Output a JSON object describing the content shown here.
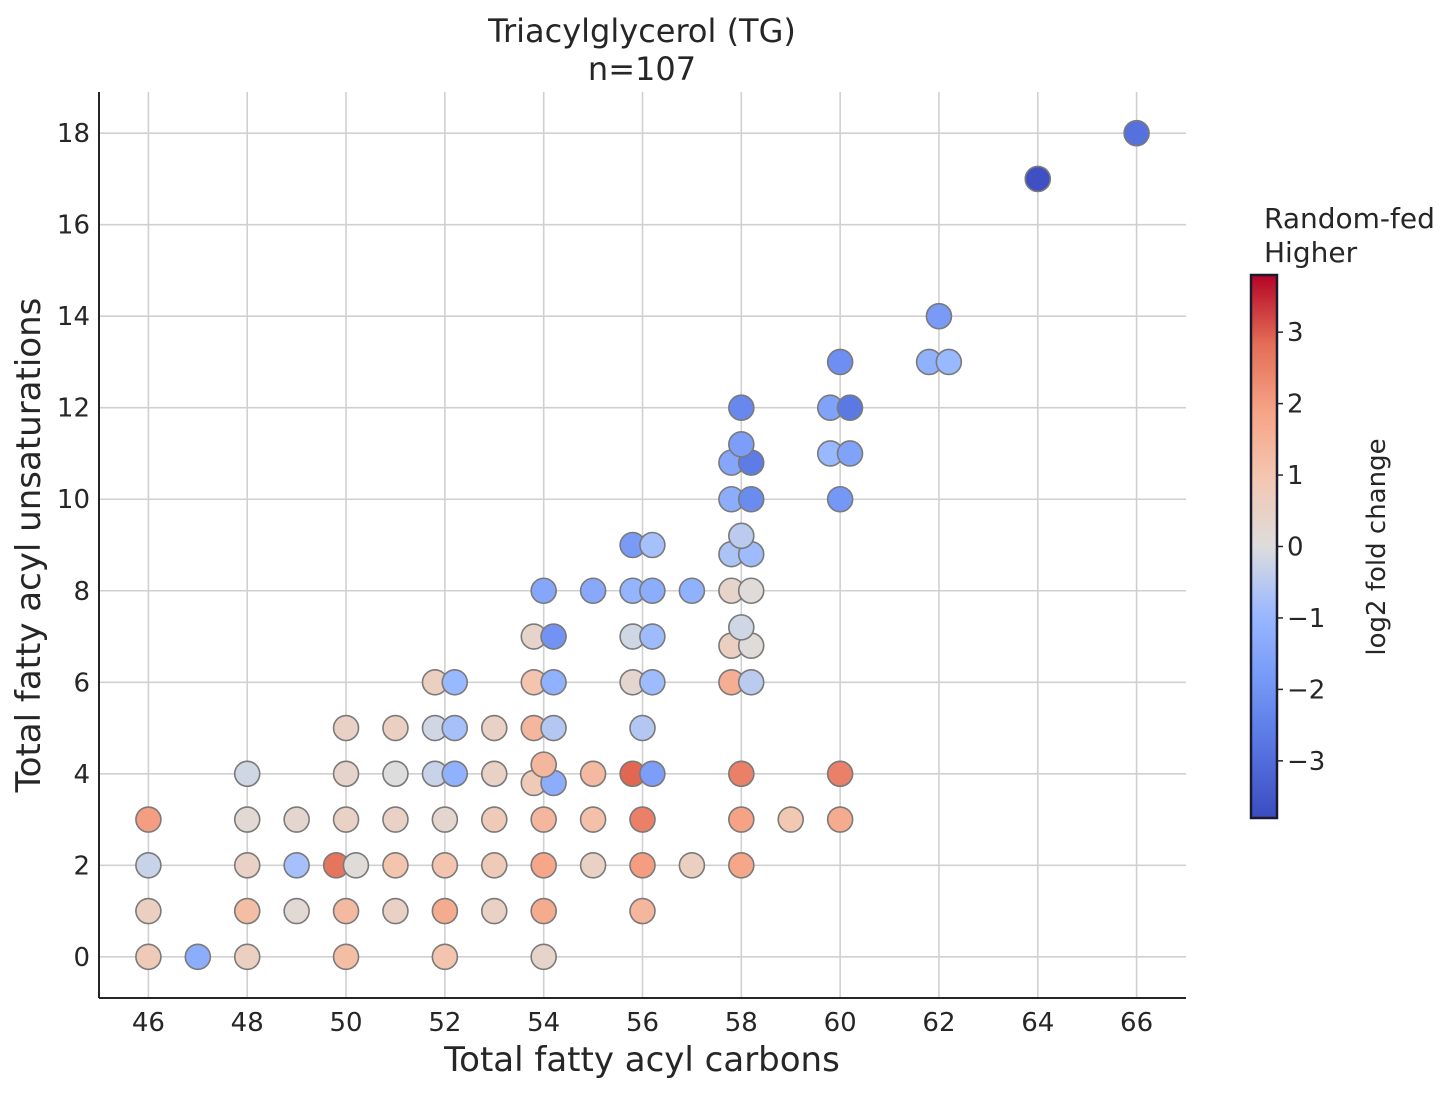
{
  "chart_data": {
    "type": "scatter",
    "title": "Triacylglycerol (TG)",
    "subtitle": "n=107",
    "xlabel": "Total fatty acyl carbons",
    "ylabel": "Total fatty acyl unsaturations",
    "xlim": [
      45,
      67
    ],
    "ylim": [
      -0.9,
      18.9
    ],
    "xticks": [
      46,
      48,
      50,
      52,
      54,
      56,
      58,
      60,
      62,
      64,
      66
    ],
    "yticks": [
      0,
      2,
      4,
      6,
      8,
      10,
      12,
      14,
      16,
      18
    ],
    "grid": true,
    "colorbar": {
      "label": "log2 fold change",
      "title_lines": [
        "Random-fed",
        "Higher"
      ],
      "range": [
        -3.8,
        3.8
      ],
      "ticks": [
        -3,
        -2,
        -1,
        0,
        1,
        2,
        3
      ],
      "tick_labels": [
        "−3",
        "−2",
        "−1",
        "0",
        "1",
        "2",
        "3"
      ],
      "colormap": "coolwarm",
      "low_color": "#3b4cc0",
      "mid_color": "#dddddd",
      "high_color": "#b40426"
    },
    "marker_edge_color": "#7a7a7a",
    "points": [
      {
        "x": 46,
        "y": 0,
        "v": 0.8
      },
      {
        "x": 46,
        "y": 1,
        "v": 0.6
      },
      {
        "x": 46,
        "y": 2,
        "v": -0.3
      },
      {
        "x": 46,
        "y": 3,
        "v": 2.0
      },
      {
        "x": 47,
        "y": 0,
        "v": -1.3
      },
      {
        "x": 48,
        "y": 0,
        "v": 0.6
      },
      {
        "x": 48,
        "y": 1,
        "v": 1.2
      },
      {
        "x": 48,
        "y": 2,
        "v": 0.5
      },
      {
        "x": 48,
        "y": 3,
        "v": 0.2
      },
      {
        "x": 48,
        "y": 4,
        "v": -0.2
      },
      {
        "x": 49,
        "y": 1,
        "v": 0.2
      },
      {
        "x": 49,
        "y": 2,
        "v": -0.8
      },
      {
        "x": 49,
        "y": 3,
        "v": 0.3
      },
      {
        "x": 49.8,
        "y": 2,
        "v": 2.7
      },
      {
        "x": 50.2,
        "y": 2,
        "v": 0.1
      },
      {
        "x": 50,
        "y": 0,
        "v": 1.2
      },
      {
        "x": 50,
        "y": 1,
        "v": 1.3
      },
      {
        "x": 50,
        "y": 3,
        "v": 0.5
      },
      {
        "x": 50,
        "y": 4,
        "v": 0.4
      },
      {
        "x": 50,
        "y": 5,
        "v": 0.5
      },
      {
        "x": 51,
        "y": 1,
        "v": 0.5
      },
      {
        "x": 51,
        "y": 2,
        "v": 1.0
      },
      {
        "x": 51,
        "y": 3,
        "v": 0.5
      },
      {
        "x": 51,
        "y": 4,
        "v": 0.0
      },
      {
        "x": 51,
        "y": 5,
        "v": 0.6
      },
      {
        "x": 52,
        "y": 0,
        "v": 1.0
      },
      {
        "x": 52,
        "y": 1,
        "v": 1.7
      },
      {
        "x": 52,
        "y": 2,
        "v": 1.0
      },
      {
        "x": 52,
        "y": 3,
        "v": 0.3
      },
      {
        "x": 51.8,
        "y": 4,
        "v": -0.3
      },
      {
        "x": 52.2,
        "y": 4,
        "v": -1.2
      },
      {
        "x": 51.8,
        "y": 5,
        "v": -0.2
      },
      {
        "x": 52.2,
        "y": 5,
        "v": -0.8
      },
      {
        "x": 51.8,
        "y": 6,
        "v": 0.6
      },
      {
        "x": 52.2,
        "y": 6,
        "v": -1.0
      },
      {
        "x": 53,
        "y": 1,
        "v": 0.5
      },
      {
        "x": 53,
        "y": 2,
        "v": 0.8
      },
      {
        "x": 53,
        "y": 3,
        "v": 0.8
      },
      {
        "x": 53,
        "y": 4,
        "v": 0.5
      },
      {
        "x": 53,
        "y": 5,
        "v": 0.5
      },
      {
        "x": 54,
        "y": 0,
        "v": 0.4
      },
      {
        "x": 54,
        "y": 1,
        "v": 1.7
      },
      {
        "x": 54,
        "y": 2,
        "v": 1.8
      },
      {
        "x": 54,
        "y": 3,
        "v": 1.4
      },
      {
        "x": 53.8,
        "y": 3.8,
        "v": 0.8
      },
      {
        "x": 54.2,
        "y": 3.8,
        "v": -1.3
      },
      {
        "x": 54,
        "y": 4.2,
        "v": 1.4
      },
      {
        "x": 53.8,
        "y": 5,
        "v": 1.4
      },
      {
        "x": 54.2,
        "y": 5,
        "v": -0.6
      },
      {
        "x": 53.8,
        "y": 6,
        "v": 1.0
      },
      {
        "x": 54.2,
        "y": 6,
        "v": -1.2
      },
      {
        "x": 53.8,
        "y": 7,
        "v": 0.4
      },
      {
        "x": 54.2,
        "y": 7,
        "v": -2.0
      },
      {
        "x": 54,
        "y": 8,
        "v": -1.5
      },
      {
        "x": 55,
        "y": 2,
        "v": 0.5
      },
      {
        "x": 55,
        "y": 3,
        "v": 1.1
      },
      {
        "x": 55,
        "y": 4,
        "v": 1.3
      },
      {
        "x": 55,
        "y": 8,
        "v": -1.4
      },
      {
        "x": 56,
        "y": 1,
        "v": 1.4
      },
      {
        "x": 56,
        "y": 2,
        "v": 2.0
      },
      {
        "x": 56,
        "y": 3,
        "v": 2.5
      },
      {
        "x": 55.8,
        "y": 4,
        "v": 2.9
      },
      {
        "x": 56.2,
        "y": 4,
        "v": -1.7
      },
      {
        "x": 56,
        "y": 5,
        "v": -0.6
      },
      {
        "x": 55.8,
        "y": 6,
        "v": 0.3
      },
      {
        "x": 56.2,
        "y": 6,
        "v": -0.9
      },
      {
        "x": 55.8,
        "y": 7,
        "v": -0.2
      },
      {
        "x": 56.2,
        "y": 7,
        "v": -0.9
      },
      {
        "x": 55.8,
        "y": 8,
        "v": -1.1
      },
      {
        "x": 56.2,
        "y": 8,
        "v": -1.3
      },
      {
        "x": 55.8,
        "y": 9,
        "v": -1.8
      },
      {
        "x": 56.2,
        "y": 9,
        "v": -0.8
      },
      {
        "x": 57,
        "y": 2,
        "v": 0.6
      },
      {
        "x": 57,
        "y": 8,
        "v": -1.2
      },
      {
        "x": 58,
        "y": 2,
        "v": 1.8
      },
      {
        "x": 58,
        "y": 3,
        "v": 1.9
      },
      {
        "x": 58,
        "y": 4,
        "v": 2.5
      },
      {
        "x": 57.8,
        "y": 6,
        "v": 1.6
      },
      {
        "x": 58.2,
        "y": 6,
        "v": -0.5
      },
      {
        "x": 57.8,
        "y": 6.8,
        "v": 0.6
      },
      {
        "x": 58.2,
        "y": 6.8,
        "v": 0.1
      },
      {
        "x": 58,
        "y": 7.2,
        "v": -0.2
      },
      {
        "x": 57.8,
        "y": 8,
        "v": 0.4
      },
      {
        "x": 58.2,
        "y": 8,
        "v": 0.1
      },
      {
        "x": 57.8,
        "y": 8.8,
        "v": -0.7
      },
      {
        "x": 58.2,
        "y": 8.8,
        "v": -0.9
      },
      {
        "x": 58,
        "y": 9.2,
        "v": -0.5
      },
      {
        "x": 57.8,
        "y": 10,
        "v": -1.3
      },
      {
        "x": 58.2,
        "y": 10,
        "v": -2.2
      },
      {
        "x": 57.8,
        "y": 10.8,
        "v": -1.5
      },
      {
        "x": 58.2,
        "y": 10.8,
        "v": -2.6
      },
      {
        "x": 58,
        "y": 11.2,
        "v": -1.7
      },
      {
        "x": 58,
        "y": 12,
        "v": -2.3
      },
      {
        "x": 59,
        "y": 3,
        "v": 0.9
      },
      {
        "x": 60,
        "y": 3,
        "v": 1.7
      },
      {
        "x": 60,
        "y": 4,
        "v": 2.5
      },
      {
        "x": 60,
        "y": 10,
        "v": -1.9
      },
      {
        "x": 59.8,
        "y": 11,
        "v": -1.0
      },
      {
        "x": 60.2,
        "y": 11,
        "v": -1.6
      },
      {
        "x": 59.8,
        "y": 12,
        "v": -1.6
      },
      {
        "x": 60.2,
        "y": 12,
        "v": -2.7
      },
      {
        "x": 60,
        "y": 13,
        "v": -2.1
      },
      {
        "x": 61.8,
        "y": 13,
        "v": -1.2
      },
      {
        "x": 62.2,
        "y": 13,
        "v": -1.0
      },
      {
        "x": 62,
        "y": 14,
        "v": -1.8
      },
      {
        "x": 64,
        "y": 17,
        "v": -3.7
      },
      {
        "x": 66,
        "y": 18,
        "v": -2.9
      }
    ]
  }
}
